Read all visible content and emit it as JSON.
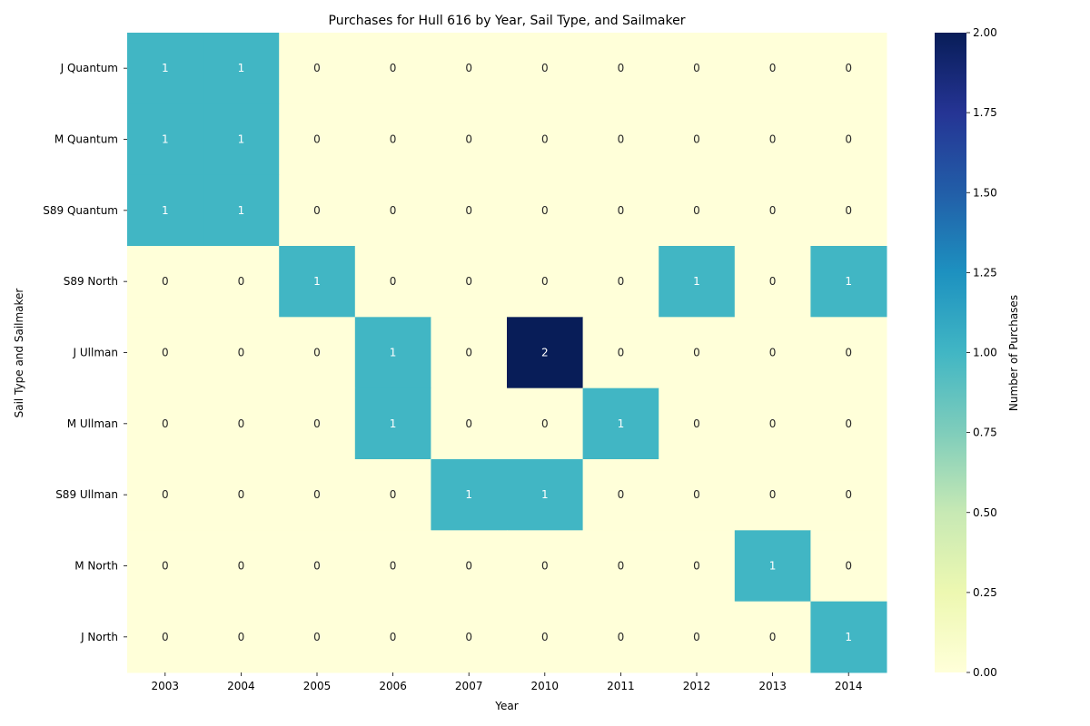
{
  "chart_data": {
    "type": "heatmap",
    "title": "Purchases for Hull 616 by Year, Sail Type, and Sailmaker",
    "xlabel": "Year",
    "ylabel": "Sail Type and Sailmaker",
    "x_categories": [
      "2003",
      "2004",
      "2005",
      "2006",
      "2007",
      "2010",
      "2011",
      "2012",
      "2013",
      "2014"
    ],
    "y_categories": [
      "J Quantum",
      "M Quantum",
      "S89 Quantum",
      "S89 North",
      "J Ullman",
      "M Ullman",
      "S89 Ullman",
      "M North",
      "J North"
    ],
    "values": [
      [
        1,
        1,
        0,
        0,
        0,
        0,
        0,
        0,
        0,
        0
      ],
      [
        1,
        1,
        0,
        0,
        0,
        0,
        0,
        0,
        0,
        0
      ],
      [
        1,
        1,
        0,
        0,
        0,
        0,
        0,
        0,
        0,
        0
      ],
      [
        0,
        0,
        1,
        0,
        0,
        0,
        0,
        1,
        0,
        1
      ],
      [
        0,
        0,
        0,
        1,
        0,
        2,
        0,
        0,
        0,
        0
      ],
      [
        0,
        0,
        0,
        1,
        0,
        0,
        1,
        0,
        0,
        0
      ],
      [
        0,
        0,
        0,
        0,
        1,
        1,
        0,
        0,
        0,
        0
      ],
      [
        0,
        0,
        0,
        0,
        0,
        0,
        0,
        0,
        1,
        0
      ],
      [
        0,
        0,
        0,
        0,
        0,
        0,
        0,
        0,
        0,
        1
      ]
    ],
    "colorbar": {
      "label": "Number of Purchases",
      "range": [
        0,
        2
      ],
      "ticks": [
        "0.00",
        "0.25",
        "0.50",
        "0.75",
        "1.00",
        "1.25",
        "1.50",
        "1.75",
        "2.00"
      ],
      "colormap": "YlGnBu",
      "colors": {
        "zero": "#ffffd9",
        "one": "#41b6c4",
        "two": "#081d58"
      }
    }
  }
}
